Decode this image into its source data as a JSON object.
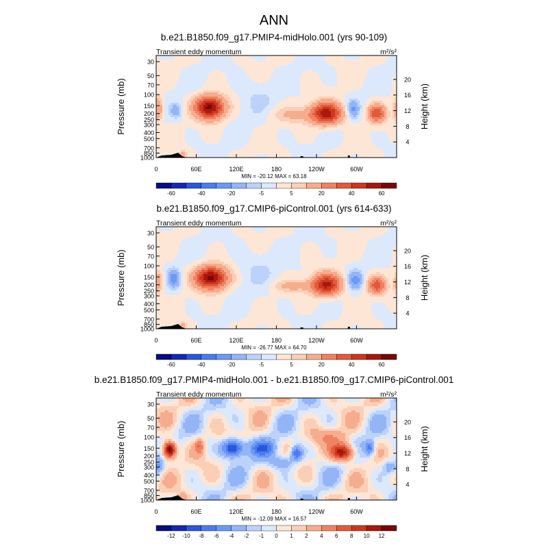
{
  "chart_data": {
    "type": "heatmap",
    "title": "ANN",
    "lon_ticks": [
      "0",
      "60E",
      "120E",
      "180",
      "120W",
      "60W"
    ],
    "lon_tick_deg": [
      0,
      60,
      120,
      180,
      240,
      300
    ],
    "pressure_ticks": [
      "30",
      "50",
      "70",
      "100",
      "150",
      "200",
      "250",
      "300",
      "400",
      "500",
      "700",
      "850",
      "1000"
    ],
    "pressure_values": [
      30,
      50,
      70,
      100,
      150,
      200,
      250,
      300,
      400,
      500,
      700,
      850,
      1000
    ],
    "height_ticks": [
      "20",
      "16",
      "12",
      "8",
      "4"
    ],
    "height_values": [
      20,
      16,
      12,
      8,
      4
    ],
    "ylabel": "Pressure (mb)",
    "ylabel_right": "Height (km)",
    "panels": [
      {
        "title": "b.e21.B1850.f09_g17.PMIP4-midHolo.001 (yrs 90-109)",
        "subtitle_left": "Transient eddy momentum",
        "units": "m²/s²",
        "stats": "MIN = -20.12  MAX = 63.18",
        "colorbar_labels": [
          "-60",
          "-40",
          "-20",
          "-5",
          "5",
          "20",
          "40",
          "60"
        ],
        "levels": [
          -70,
          -60,
          -50,
          -40,
          -30,
          -20,
          -10,
          -5,
          0,
          5,
          10,
          20,
          30,
          40,
          50,
          60,
          70
        ],
        "features": [
          {
            "lon": 80,
            "p": 160,
            "amp": 63,
            "wlon": 15,
            "wp": 0.28
          },
          {
            "lon": 255,
            "p": 200,
            "amp": 55,
            "wlon": 16,
            "wp": 0.27
          },
          {
            "lon": 330,
            "p": 200,
            "amp": 38,
            "wlon": 9,
            "wp": 0.22
          },
          {
            "lon": 3,
            "p": 170,
            "amp": 22,
            "wlon": 5,
            "wp": 0.3
          },
          {
            "lon": 30,
            "p": 180,
            "amp": -15,
            "wlon": 6,
            "wp": 0.18
          },
          {
            "lon": 295,
            "p": 170,
            "amp": -20,
            "wlon": 6,
            "wp": 0.22
          },
          {
            "lon": 205,
            "p": 210,
            "amp": 10,
            "wlon": 25,
            "wp": 0.2
          },
          {
            "lon": 150,
            "p": 120,
            "amp": -5,
            "wlon": 20,
            "wp": 0.5
          },
          {
            "lon": 40,
            "p": 900,
            "amp": 15,
            "wlon": 4,
            "wp": 0.1
          }
        ]
      },
      {
        "title": "b.e21.B1850.f09_g17.CMIP6-piControl.001 (yrs 614-633)",
        "subtitle_left": "Transient eddy momentum",
        "units": "m²/s²",
        "stats": "MIN = -26.77  MAX = 64.70",
        "colorbar_labels": [
          "-60",
          "-40",
          "-20",
          "-5",
          "5",
          "20",
          "40",
          "60"
        ],
        "levels": [
          -70,
          -60,
          -50,
          -40,
          -30,
          -20,
          -10,
          -5,
          0,
          5,
          10,
          20,
          30,
          40,
          50,
          60,
          70
        ],
        "features": [
          {
            "lon": 82,
            "p": 155,
            "amp": 64,
            "wlon": 16,
            "wp": 0.28
          },
          {
            "lon": 255,
            "p": 200,
            "amp": 52,
            "wlon": 15,
            "wp": 0.27
          },
          {
            "lon": 330,
            "p": 205,
            "amp": 36,
            "wlon": 9,
            "wp": 0.22
          },
          {
            "lon": 3,
            "p": 180,
            "amp": 18,
            "wlon": 5,
            "wp": 0.3
          },
          {
            "lon": 27,
            "p": 160,
            "amp": -26,
            "wlon": 6,
            "wp": 0.22
          },
          {
            "lon": 298,
            "p": 170,
            "amp": -24,
            "wlon": 7,
            "wp": 0.22
          },
          {
            "lon": 205,
            "p": 210,
            "amp": 12,
            "wlon": 22,
            "wp": 0.15
          },
          {
            "lon": 150,
            "p": 120,
            "amp": -5,
            "wlon": 22,
            "wp": 0.5
          },
          {
            "lon": 40,
            "p": 900,
            "amp": 15,
            "wlon": 4,
            "wp": 0.1
          }
        ]
      },
      {
        "title": "b.e21.B1850.f09_g17.PMIP4-midHolo.001 - b.e21.B1850.f09_g17.CMIP6-piControl.001",
        "subtitle_left": "Transient eddy momentum",
        "units": "m²/s²",
        "stats": "MIN = -12.09  MAX = 16.57",
        "colorbar_labels": [
          "-12",
          "-10",
          "-8",
          "-6",
          "-4",
          "-2",
          "-1",
          "0",
          "1",
          "2",
          "4",
          "6",
          "8",
          "10",
          "12"
        ],
        "levels": [
          -14,
          -12,
          -10,
          -8,
          -6,
          -4,
          -2,
          -1,
          0,
          1,
          2,
          4,
          6,
          8,
          10,
          12,
          14
        ],
        "features": [
          {
            "lon": 20,
            "p": 160,
            "amp": 16,
            "wlon": 7,
            "wp": 0.22
          },
          {
            "lon": 65,
            "p": 140,
            "amp": 5,
            "wlon": 5,
            "wp": 0.2
          },
          {
            "lon": 115,
            "p": 150,
            "amp": -12,
            "wlon": 11,
            "wp": 0.22
          },
          {
            "lon": 160,
            "p": 150,
            "amp": -6,
            "wlon": 14,
            "wp": 0.2
          },
          {
            "lon": 210,
            "p": 180,
            "amp": -8,
            "wlon": 6,
            "wp": 0.18
          },
          {
            "lon": 190,
            "p": 250,
            "amp": -4,
            "wlon": 15,
            "wp": 0.2
          },
          {
            "lon": 280,
            "p": 175,
            "amp": 12,
            "wlon": 12,
            "wp": 0.22
          },
          {
            "lon": 320,
            "p": 150,
            "amp": -7,
            "wlon": 5,
            "wp": 0.18
          },
          {
            "lon": 260,
            "p": 100,
            "amp": 3,
            "wlon": 20,
            "wp": 0.2
          },
          {
            "lon": 5,
            "p": 300,
            "amp": -3,
            "wlon": 5,
            "wp": 0.2
          },
          {
            "lon": 350,
            "p": 300,
            "amp": -4,
            "wlon": 8,
            "wp": 0.2
          },
          {
            "lon": 40,
            "p": 900,
            "amp": 3,
            "wlon": 4,
            "wp": 0.1
          }
        ]
      }
    ]
  },
  "palette": [
    "#0a0a82",
    "#1428b4",
    "#2a55dc",
    "#4a7cf0",
    "#6b99f4",
    "#93b5f7",
    "#bcd2fa",
    "#dce8fc",
    "#fde6d6",
    "#fbcfb6",
    "#f6ac8e",
    "#ef8262",
    "#e35a3a",
    "#cc3720",
    "#a8180d",
    "#780808"
  ]
}
